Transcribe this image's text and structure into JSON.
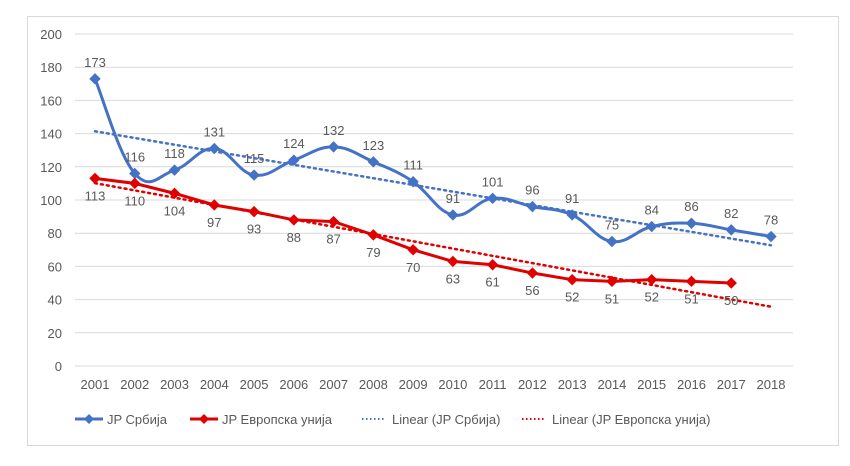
{
  "chart_data": {
    "type": "line",
    "title": "",
    "xlabel": "",
    "ylabel": "",
    "ylim": [
      0,
      200
    ],
    "yticks": [
      0,
      20,
      40,
      60,
      80,
      100,
      120,
      140,
      160,
      180,
      200
    ],
    "grid": true,
    "legend_position": "bottom",
    "categories": [
      "2001",
      "2002",
      "2003",
      "2004",
      "2005",
      "2006",
      "2007",
      "2008",
      "2009",
      "2010",
      "2011",
      "2012",
      "2013",
      "2014",
      "2015",
      "2016",
      "2017",
      "2018"
    ],
    "series": [
      {
        "name": "JP Србија",
        "color": "#4472c4",
        "smooth": true,
        "marker": "diamond",
        "label_position": "above",
        "values": [
          173,
          116,
          118,
          131,
          115,
          124,
          132,
          123,
          111,
          91,
          101,
          96,
          91,
          75,
          84,
          86,
          82,
          78
        ]
      },
      {
        "name": "JP Европска унија",
        "color": "#e00000",
        "smooth": false,
        "marker": "diamond",
        "label_position": "below",
        "values": [
          113,
          110,
          104,
          97,
          93,
          88,
          87,
          79,
          70,
          63,
          61,
          56,
          52,
          51,
          52,
          51,
          50,
          null
        ]
      }
    ],
    "trendlines": [
      {
        "name": "Linear (JP Србија)",
        "color": "#4472c4",
        "type": "linear",
        "of_series": 0
      },
      {
        "name": "Linear (JP Европска унија)",
        "color": "#e00000",
        "type": "linear",
        "of_series": 1
      }
    ]
  }
}
